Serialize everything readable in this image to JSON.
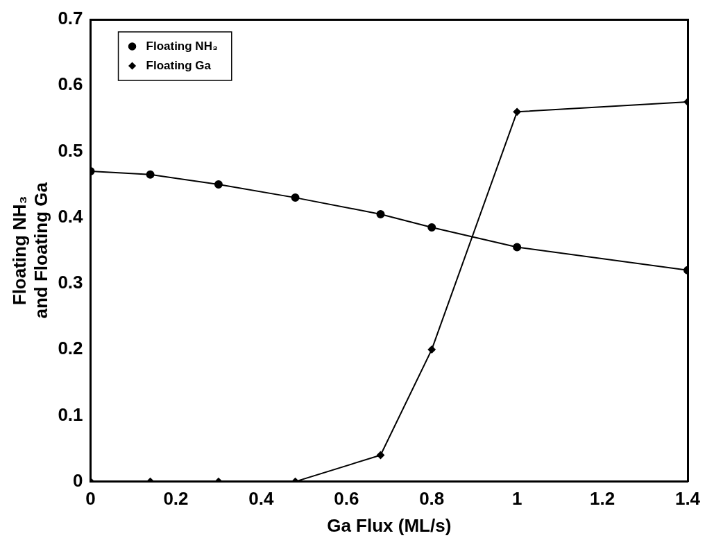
{
  "chart_data": {
    "type": "line",
    "xlabel": "Ga Flux (ML/s)",
    "ylabel": "Floating NH₃\nand Floating Ga",
    "x": [
      0,
      0.14,
      0.3,
      0.48,
      0.68,
      0.8,
      1.0,
      1.4
    ],
    "series": [
      {
        "name": "Floating NH₃",
        "color": "#000000",
        "marker": "circle",
        "values": [
          0.47,
          0.465,
          0.45,
          0.43,
          0.405,
          0.385,
          0.355,
          0.32
        ]
      },
      {
        "name": "Floating Ga",
        "color": "#000000",
        "marker": "diamond",
        "values": [
          0,
          0,
          0,
          0,
          0.04,
          0.2,
          0.56,
          0.575
        ]
      }
    ],
    "xlim": [
      0,
      1.4
    ],
    "xticks": [
      0,
      0.2,
      0.4,
      0.6,
      0.8,
      1,
      1.2,
      1.4
    ],
    "ylim": [
      0,
      0.7
    ],
    "yticks": [
      0,
      0.1,
      0.2,
      0.3,
      0.4,
      0.5,
      0.6,
      0.7
    ],
    "grid": false,
    "legend": "top left",
    "line_style": "solid"
  }
}
